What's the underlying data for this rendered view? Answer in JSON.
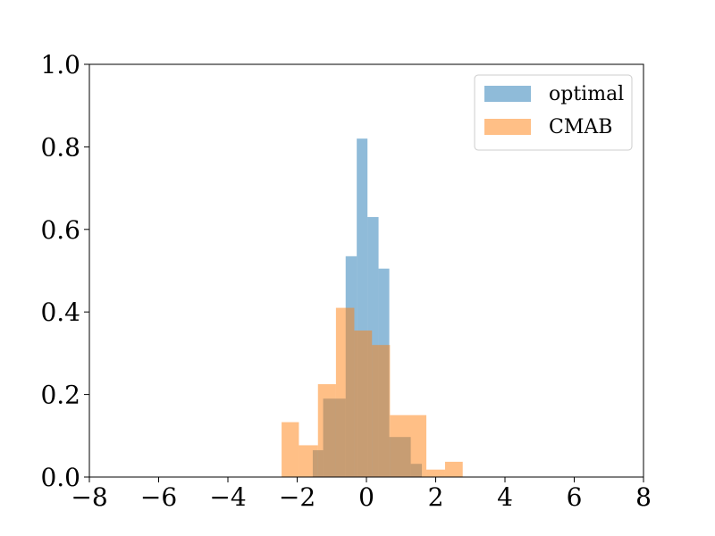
{
  "chart_data": {
    "type": "histogram",
    "title": "",
    "xlabel": "",
    "ylabel": "",
    "xlim": [
      -8,
      8
    ],
    "ylim": [
      0,
      1.0
    ],
    "x_ticks": [
      -8,
      -6,
      -4,
      -2,
      0,
      2,
      4,
      6,
      8
    ],
    "x_tick_labels": [
      "−8",
      "−6",
      "−4",
      "−2",
      "0",
      "2",
      "4",
      "6",
      "8"
    ],
    "y_ticks": [
      0.0,
      0.2,
      0.4,
      0.6,
      0.8,
      1.0
    ],
    "y_tick_labels": [
      "0.0",
      "0.2",
      "0.4",
      "0.6",
      "0.8",
      "1.0"
    ],
    "grid": false,
    "legend_position": "top-right",
    "series": [
      {
        "name": "optimal",
        "color": "#1f77b4",
        "alpha": 0.5,
        "bins": [
          {
            "x0": -1.55,
            "x1": -1.25,
            "y": 0.065
          },
          {
            "x0": -1.25,
            "x1": -0.6,
            "y": 0.19
          },
          {
            "x0": -0.6,
            "x1": -0.28,
            "y": 0.535
          },
          {
            "x0": -0.28,
            "x1": 0.03,
            "y": 0.82
          },
          {
            "x0": 0.03,
            "x1": 0.35,
            "y": 0.63
          },
          {
            "x0": 0.35,
            "x1": 0.66,
            "y": 0.505
          },
          {
            "x0": 0.66,
            "x1": 1.28,
            "y": 0.097
          },
          {
            "x0": 1.28,
            "x1": 1.6,
            "y": 0.032
          }
        ]
      },
      {
        "name": "CMAB",
        "color": "#ff7f0e",
        "alpha": 0.5,
        "bins": [
          {
            "x0": -2.45,
            "x1": -1.95,
            "y": 0.133
          },
          {
            "x0": -1.95,
            "x1": -1.4,
            "y": 0.077
          },
          {
            "x0": -1.4,
            "x1": -0.88,
            "y": 0.225
          },
          {
            "x0": -0.88,
            "x1": -0.35,
            "y": 0.41
          },
          {
            "x0": -0.35,
            "x1": 0.16,
            "y": 0.355
          },
          {
            "x0": 0.16,
            "x1": 0.68,
            "y": 0.32
          },
          {
            "x0": 0.68,
            "x1": 1.73,
            "y": 0.15
          },
          {
            "x0": 1.73,
            "x1": 2.27,
            "y": 0.018
          },
          {
            "x0": 2.27,
            "x1": 2.78,
            "y": 0.037
          }
        ]
      }
    ]
  }
}
